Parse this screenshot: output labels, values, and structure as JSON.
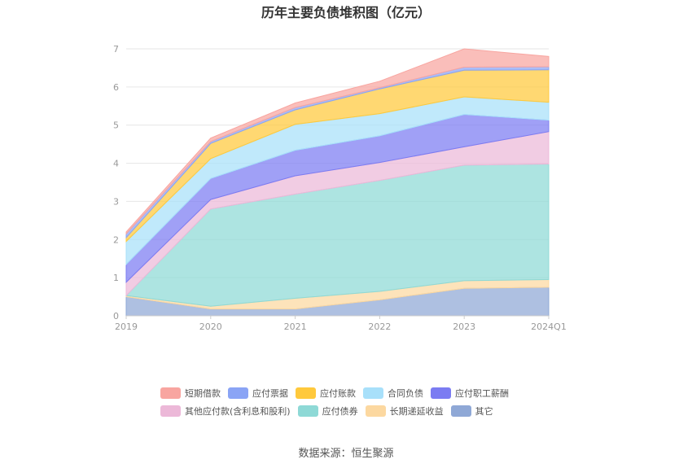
{
  "chart_data": {
    "type": "area",
    "stacked": true,
    "title": "历年主要负债堆积图（亿元）",
    "categories": [
      "2019",
      "2020",
      "2021",
      "2022",
      "2023",
      "2024Q1"
    ],
    "ylim": [
      0,
      7
    ],
    "yticks": [
      0,
      1,
      2,
      3,
      4,
      5,
      6,
      7
    ],
    "grid": true,
    "legend_position": "bottom",
    "series": [
      {
        "name": "其它",
        "color": "#8fa8d6",
        "values": [
          0.5,
          0.18,
          0.18,
          0.42,
          0.72,
          0.75
        ]
      },
      {
        "name": "长期递延收益",
        "color": "#fcd8a0",
        "values": [
          0.03,
          0.07,
          0.28,
          0.22,
          0.2,
          0.2
        ]
      },
      {
        "name": "应付债券",
        "color": "#8ed9d6",
        "values": [
          0.0,
          2.55,
          2.73,
          2.91,
          3.03,
          3.03
        ]
      },
      {
        "name": "其他应付款(含利息和股利)",
        "color": "#ecb8d8",
        "values": [
          0.35,
          0.25,
          0.48,
          0.47,
          0.48,
          0.85
        ]
      },
      {
        "name": "应付职工薪酬",
        "color": "#7b7cf2",
        "values": [
          0.47,
          0.55,
          0.67,
          0.7,
          0.85,
          0.3
        ]
      },
      {
        "name": "合同负债",
        "color": "#a8e0fa",
        "values": [
          0.6,
          0.52,
          0.68,
          0.58,
          0.46,
          0.47
        ]
      },
      {
        "name": "应付账款",
        "color": "#ffc93c",
        "values": [
          0.1,
          0.4,
          0.38,
          0.65,
          0.7,
          0.85
        ]
      },
      {
        "name": "应付票据",
        "color": "#8aa4f5",
        "values": [
          0.1,
          0.05,
          0.06,
          0.03,
          0.08,
          0.08
        ]
      },
      {
        "name": "短期借款",
        "color": "#f8a5a0",
        "values": [
          0.05,
          0.09,
          0.12,
          0.17,
          0.48,
          0.27
        ]
      }
    ]
  },
  "legend_rows": [
    [
      "短期借款",
      "应付票据",
      "应付账款",
      "合同负债",
      "应付职工薪酬"
    ],
    [
      "其他应付款(含利息和股利)",
      "应付债券",
      "长期递延收益",
      "其它"
    ]
  ],
  "source_text": "数据来源：恒生聚源"
}
